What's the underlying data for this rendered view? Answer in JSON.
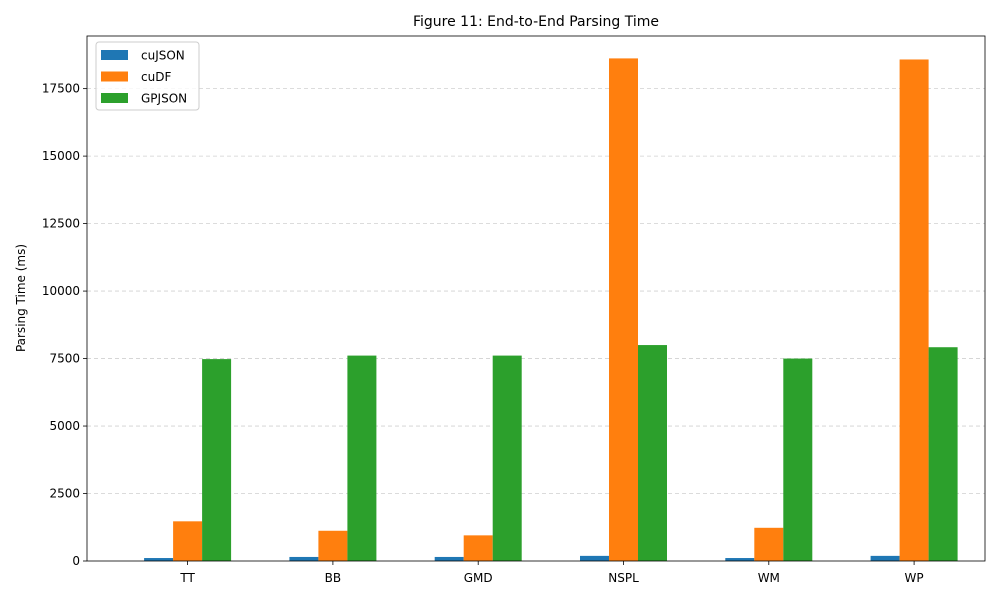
{
  "chart_data": {
    "type": "bar",
    "title": "Figure 11: End-to-End Parsing Time",
    "xlabel": "",
    "ylabel": "Parsing Time (ms)",
    "categories": [
      "TT",
      "BB",
      "GMD",
      "NSPL",
      "WM",
      "WP"
    ],
    "series": [
      {
        "name": "cuJSON",
        "color": "#1f77b4",
        "values": [
          110,
          150,
          150,
          190,
          110,
          190
        ]
      },
      {
        "name": "cuDF",
        "color": "#ff7f0e",
        "values": [
          1470,
          1120,
          950,
          18620,
          1230,
          18580
        ]
      },
      {
        "name": "GPJSON",
        "color": "#2ca02c",
        "values": [
          7480,
          7610,
          7610,
          8000,
          7500,
          7920
        ]
      }
    ],
    "ylim": [
      0,
      19450
    ],
    "yticks": [
      0,
      2500,
      5000,
      7500,
      10000,
      12500,
      15000,
      17500
    ],
    "grid": "y-dashed",
    "legend": "top-left"
  }
}
